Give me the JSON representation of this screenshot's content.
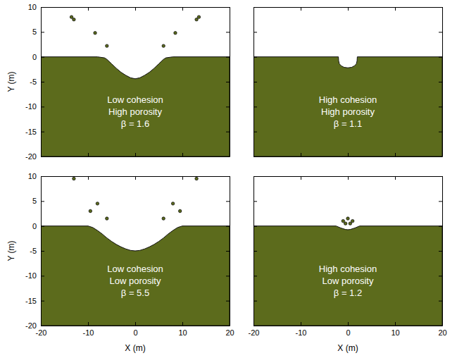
{
  "chart_data": [
    {
      "type": "area",
      "x": [
        -20,
        -8,
        -6.5,
        -6,
        -5,
        -4,
        -3,
        -2,
        -1,
        0,
        1,
        2,
        3,
        4,
        5,
        6,
        6.5,
        8,
        20
      ],
      "values": [
        0,
        0,
        -0.2,
        -0.5,
        -1.4,
        -2.3,
        -3.1,
        -3.7,
        -4.2,
        -4.4,
        -4.2,
        -3.7,
        -3.1,
        -2.3,
        -1.4,
        -0.5,
        -0.2,
        0,
        0
      ],
      "ejecta": {
        "x": [
          -13.5,
          -13,
          -8.5,
          -6,
          6,
          8.5,
          13,
          13.5
        ],
        "y": [
          8,
          7.5,
          4.8,
          2.2,
          2.2,
          4.8,
          7.5,
          8
        ]
      },
      "color": "#5c6b1c",
      "xlim": [
        -20,
        20
      ],
      "ylim": [
        -20,
        10
      ],
      "xticks": [
        -20,
        -10,
        0,
        10,
        20
      ],
      "yticks": [
        -20,
        -15,
        -10,
        -5,
        0,
        5,
        10
      ],
      "ylabel": "Y (m)",
      "tick_labels": "y",
      "annotations": [
        "Low cohesion",
        "High porosity",
        "β = 1.6"
      ]
    },
    {
      "type": "area",
      "x": [
        -20,
        -2,
        -1.95,
        -1.8,
        -1.4,
        -0.8,
        0,
        0.8,
        1.4,
        1.8,
        1.95,
        2,
        20
      ],
      "values": [
        0,
        0,
        -0.8,
        -1.4,
        -1.8,
        -2.1,
        -2.2,
        -2.1,
        -1.8,
        -1.4,
        -0.8,
        0,
        0
      ],
      "color": "#5c6b1c",
      "xlim": [
        -20,
        20
      ],
      "ylim": [
        -20,
        10
      ],
      "xticks": [
        -20,
        -10,
        0,
        10,
        20
      ],
      "yticks": [
        -20,
        -15,
        -10,
        -5,
        0,
        5,
        10
      ],
      "tick_labels": false,
      "annotations": [
        "High cohesion",
        "High porosity",
        "β = 1.1"
      ]
    },
    {
      "type": "area",
      "x": [
        -20,
        -10,
        -9,
        -8,
        -7,
        -6,
        -5,
        -4,
        -3,
        -2,
        -1,
        0,
        1,
        2,
        3,
        4,
        5,
        6,
        7,
        8,
        9,
        10,
        20
      ],
      "values": [
        0,
        0,
        -0.3,
        -0.9,
        -1.6,
        -2.4,
        -3.1,
        -3.7,
        -4.2,
        -4.6,
        -4.9,
        -5,
        -4.9,
        -4.6,
        -4.2,
        -3.7,
        -3.1,
        -2.4,
        -1.6,
        -0.9,
        -0.3,
        0,
        0
      ],
      "ejecta": {
        "x": [
          -13,
          -9.5,
          -8,
          -6,
          6,
          8,
          9.5,
          13
        ],
        "y": [
          9.5,
          3,
          4.5,
          1.5,
          1.5,
          4.5,
          3,
          9.5
        ]
      },
      "color": "#5c6b1c",
      "xlim": [
        -20,
        20
      ],
      "ylim": [
        -20,
        10
      ],
      "xticks": [
        -20,
        -10,
        0,
        10,
        20
      ],
      "yticks": [
        -20,
        -15,
        -10,
        -5,
        0,
        5,
        10
      ],
      "xlabel": "X (m)",
      "ylabel": "Y (m)",
      "annotations": [
        "Low cohesion",
        "Low porosity",
        "β = 5.5"
      ]
    },
    {
      "type": "area",
      "x": [
        -20,
        -2.5,
        -1.5,
        -0.5,
        0,
        0.5,
        1.5,
        2.5,
        20
      ],
      "values": [
        0,
        0,
        -0.4,
        -0.7,
        -0.75,
        -0.7,
        -0.4,
        0,
        0
      ],
      "ejecta": {
        "x": [
          -1,
          0,
          1,
          -0.5,
          0.5
        ],
        "y": [
          1,
          1.5,
          1,
          0.5,
          0.5
        ]
      },
      "color": "#5c6b1c",
      "xlim": [
        -20,
        20
      ],
      "ylim": [
        -20,
        10
      ],
      "xticks": [
        -20,
        -10,
        0,
        10,
        20
      ],
      "yticks": [
        -20,
        -15,
        -10,
        -5,
        0,
        5,
        10
      ],
      "xlabel": "X (m)",
      "tick_labels": "x",
      "annotations": [
        "High cohesion",
        "Low porosity",
        "β = 1.2"
      ]
    }
  ]
}
